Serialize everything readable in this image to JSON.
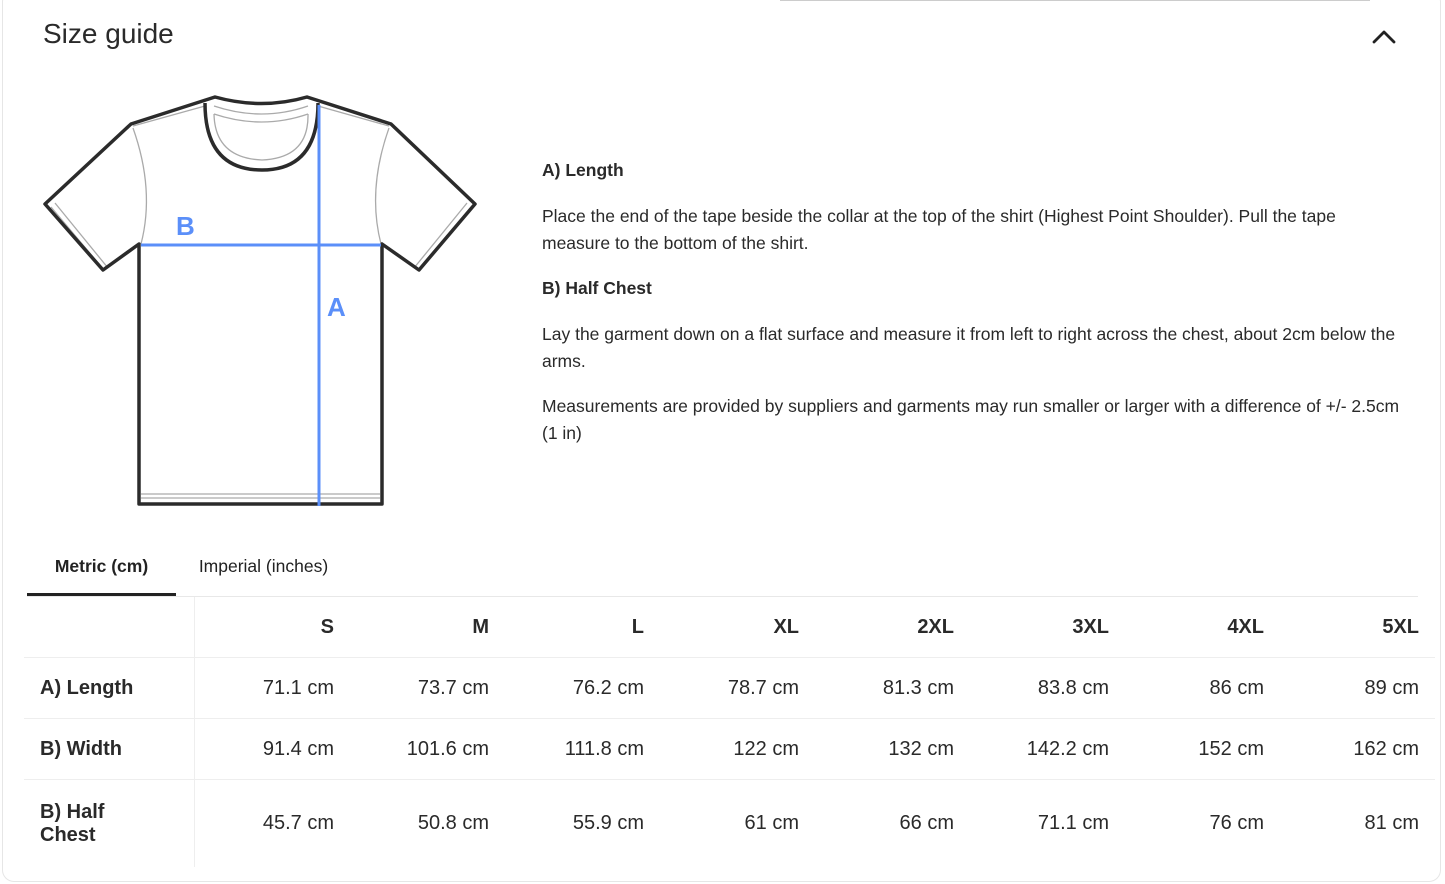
{
  "header": {
    "title": "Size guide",
    "collapse_icon": "chevron-up-icon"
  },
  "diagram": {
    "label_a": "A",
    "label_b": "B",
    "accent_color": "#5b8ff9"
  },
  "description": {
    "length_heading": "A) Length",
    "length_text": "Place the end of the tape beside the collar at the top of the shirt (Highest Point Shoulder). Pull the tape measure to the bottom of the shirt.",
    "chest_heading": "B) Half Chest",
    "chest_text": "Lay the garment down on a flat surface and measure it from left to right across the chest, about 2cm below the arms.",
    "note": "Measurements are provided by suppliers and garments may run smaller or larger with a difference of +/- 2.5cm (1 in)"
  },
  "tabs": [
    {
      "label": "Metric (cm)",
      "active": true
    },
    {
      "label": "Imperial (inches)",
      "active": false
    }
  ],
  "table": {
    "sizes": [
      "S",
      "M",
      "L",
      "XL",
      "2XL",
      "3XL",
      "4XL",
      "5XL"
    ],
    "rows": [
      {
        "label": "A) Length",
        "values": [
          "71.1 cm",
          "73.7 cm",
          "76.2 cm",
          "78.7 cm",
          "81.3 cm",
          "83.8 cm",
          "86 cm",
          "89 cm"
        ]
      },
      {
        "label": "B) Width",
        "values": [
          "91.4 cm",
          "101.6 cm",
          "111.8 cm",
          "122 cm",
          "132 cm",
          "142.2 cm",
          "152 cm",
          "162 cm"
        ]
      },
      {
        "label": "B) Half Chest",
        "values": [
          "45.7 cm",
          "50.8 cm",
          "55.9 cm",
          "61 cm",
          "66 cm",
          "71.1 cm",
          "76 cm",
          "81 cm"
        ]
      }
    ]
  }
}
